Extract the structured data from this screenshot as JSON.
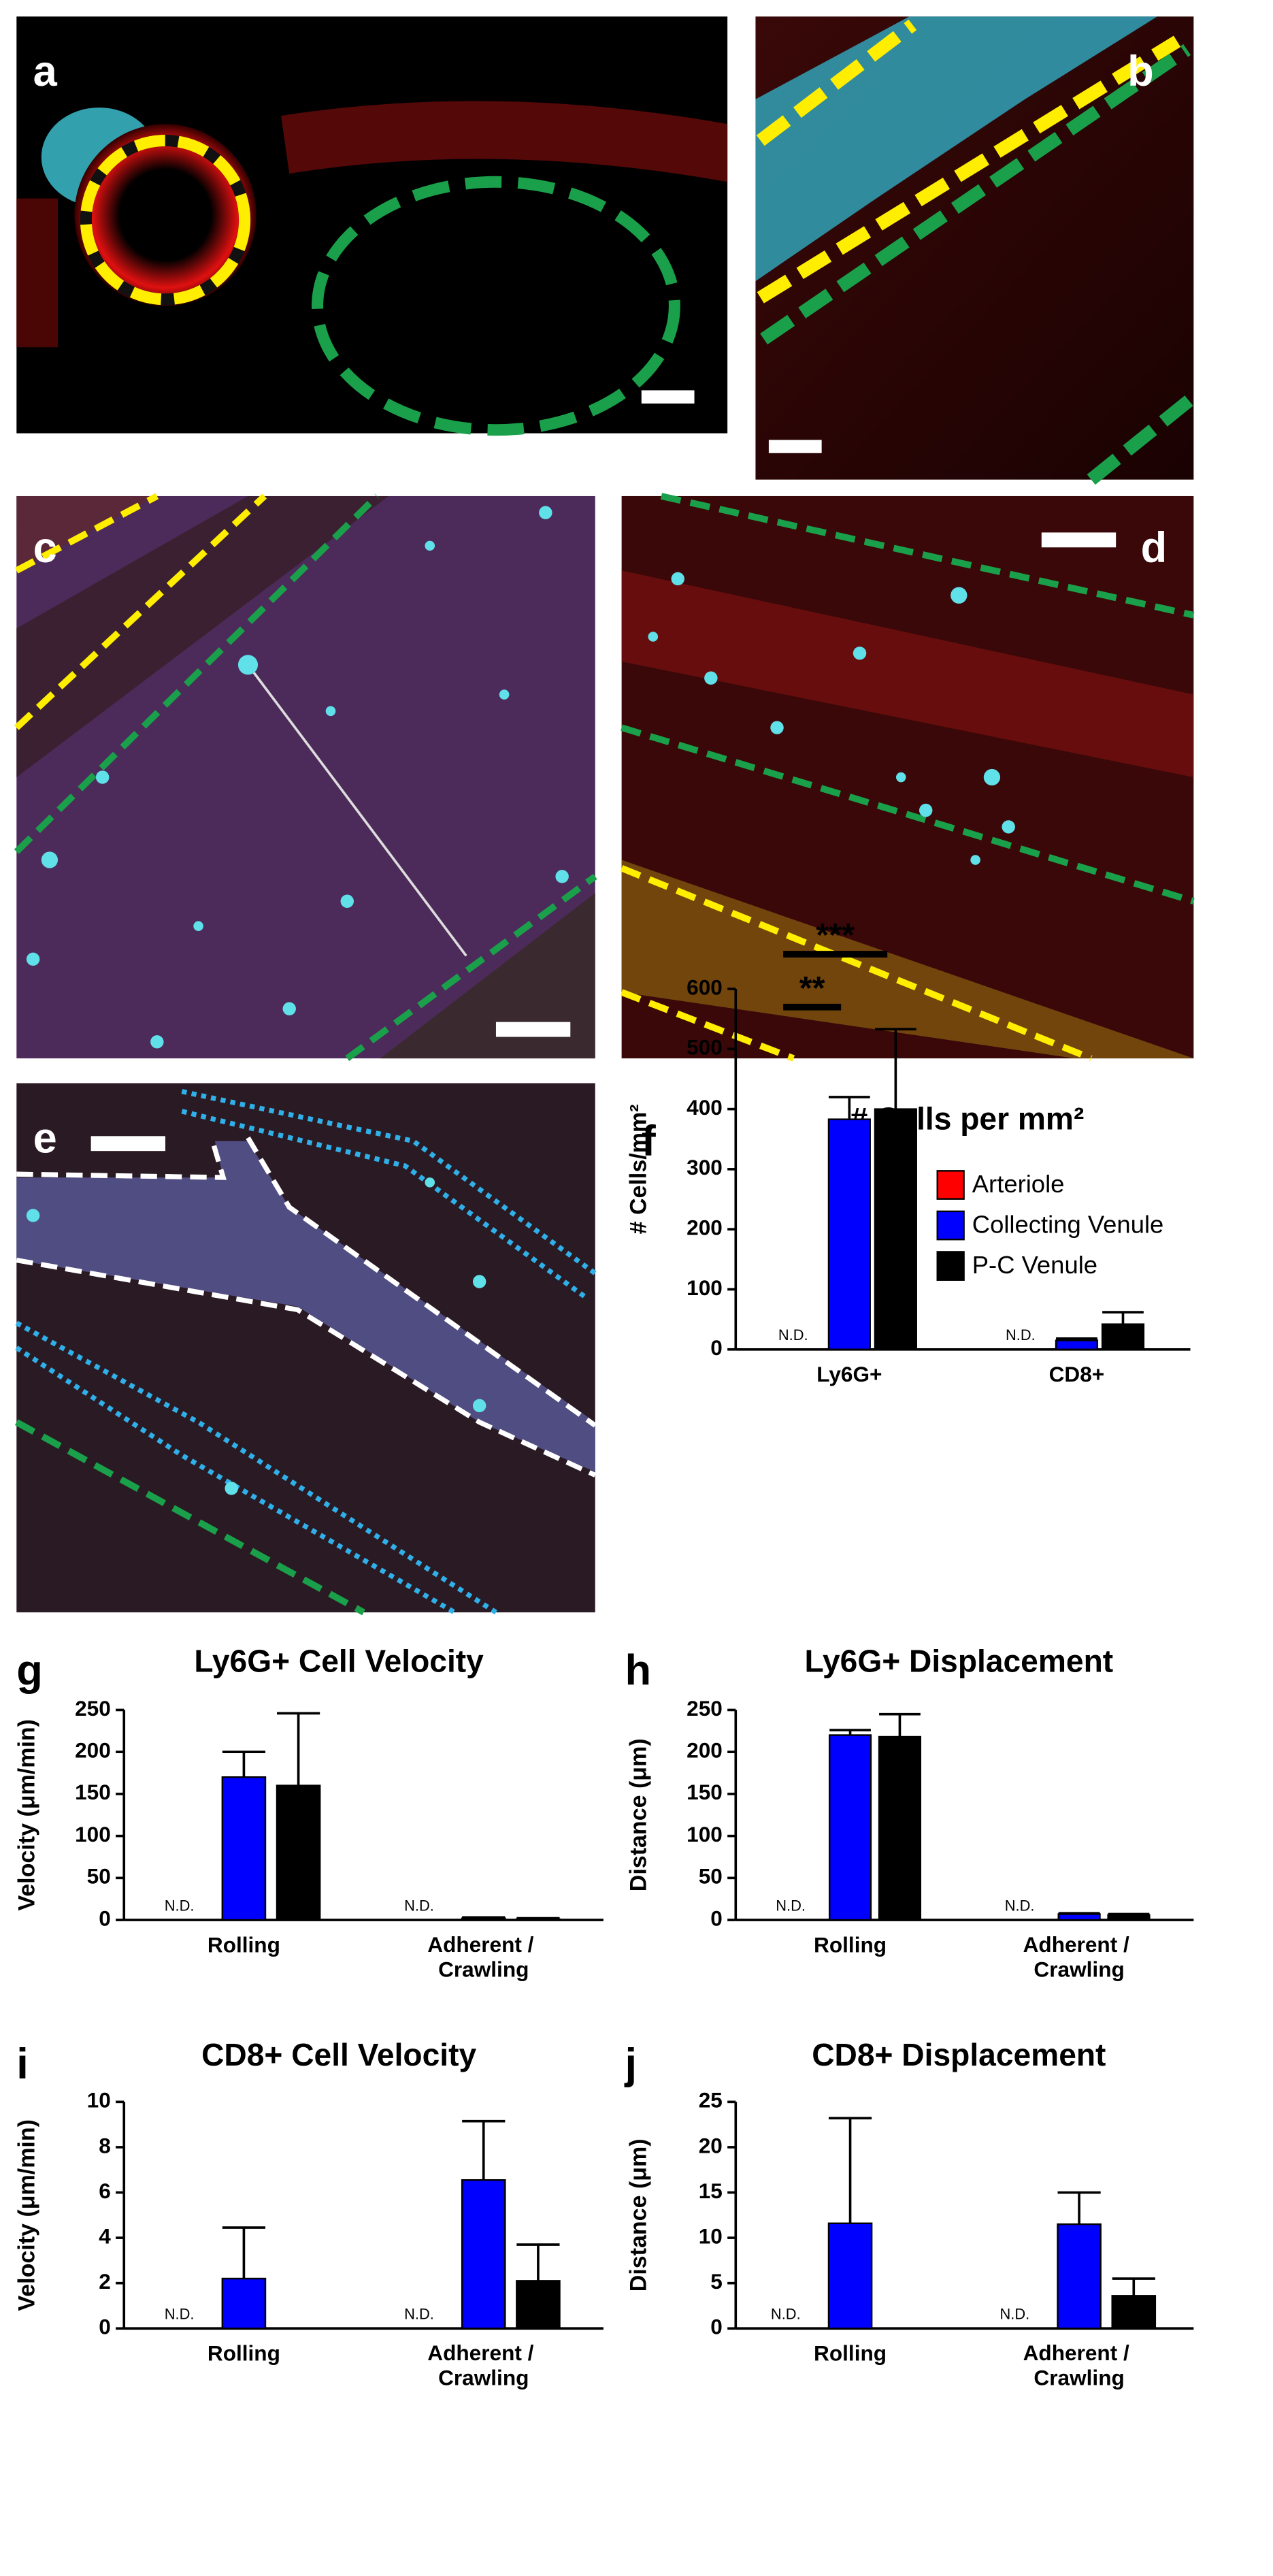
{
  "images": [
    {
      "label": "a"
    },
    {
      "label": "b"
    },
    {
      "label": "c"
    },
    {
      "label": "d"
    },
    {
      "label": "e"
    }
  ],
  "chart_data": [
    {
      "type": "bar",
      "label": "f",
      "title": "# Cells per mm²",
      "y_label": "# Cells/mm²",
      "categories": [
        "Ly6G+",
        "CD8+"
      ],
      "series": [
        {
          "name": "Arteriole",
          "color": "#ff0000",
          "values": [
            null,
            null
          ],
          "value_labels": [
            "N.D.",
            "N.D."
          ]
        },
        {
          "name": "Collecting Venule",
          "color": "#0000ff",
          "values": [
            383,
            15
          ],
          "errors": [
            37,
            3
          ]
        },
        {
          "name": "P-C Venule",
          "color": "#000000",
          "values": [
            400,
            42
          ],
          "errors": [
            133,
            20
          ]
        }
      ],
      "ylim": [
        0,
        600
      ],
      "yticks": [
        0,
        100,
        200,
        300,
        400,
        500,
        600
      ],
      "grid": false,
      "legend": "right",
      "annotations": [
        {
          "text": "**"
        },
        {
          "text": "***"
        }
      ]
    },
    {
      "type": "bar",
      "label": "g",
      "title": "Ly6G+ Cell Velocity",
      "y_label": "Velocity (μm/min)",
      "categories": [
        "Rolling",
        "Adherent /\nCrawling"
      ],
      "series": [
        {
          "color": "#ff0000",
          "values": [
            null,
            null
          ],
          "value_labels": [
            "N.D.",
            "N.D."
          ]
        },
        {
          "color": "#0000ff",
          "values": [
            170,
            2
          ],
          "errors": [
            30,
            1
          ]
        },
        {
          "color": "#000000",
          "values": [
            160,
            1
          ],
          "errors": [
            86,
            1
          ]
        }
      ],
      "ylim": [
        0,
        250
      ],
      "yticks": [
        0,
        50,
        100,
        150,
        200,
        250
      ],
      "grid": false
    },
    {
      "type": "bar",
      "label": "h",
      "title": "Ly6G+ Displacement",
      "y_label": "Distance (μm)",
      "categories": [
        "Rolling",
        "Adherent /\nCrawling"
      ],
      "series": [
        {
          "color": "#ff0000",
          "values": [
            null,
            null
          ],
          "value_labels": [
            "N.D.",
            "N.D."
          ]
        },
        {
          "color": "#0000ff",
          "values": [
            220,
            7
          ],
          "errors": [
            6,
            1
          ]
        },
        {
          "color": "#000000",
          "values": [
            218,
            6
          ],
          "errors": [
            27,
            1
          ]
        }
      ],
      "ylim": [
        0,
        250
      ],
      "yticks": [
        0,
        50,
        100,
        150,
        200,
        250
      ],
      "grid": false
    },
    {
      "type": "bar",
      "label": "i",
      "title": "CD8+ Cell Velocity",
      "y_label": "Velocity (μm/min)",
      "categories": [
        "Rolling",
        "Adherent /\nCrawling"
      ],
      "series": [
        {
          "color": "#ff0000",
          "values": [
            null,
            null
          ],
          "value_labels": [
            "N.D.",
            "N.D."
          ]
        },
        {
          "color": "#0000ff",
          "values": [
            2.2,
            6.55
          ],
          "errors": [
            2.25,
            2.6
          ]
        },
        {
          "color": "#000000",
          "values": [
            0,
            2.1
          ],
          "errors": [
            0,
            1.6
          ]
        }
      ],
      "ylim": [
        0,
        10
      ],
      "yticks": [
        0,
        2,
        4,
        6,
        8,
        10
      ],
      "grid": false
    },
    {
      "type": "bar",
      "label": "j",
      "title": "CD8+ Displacement",
      "y_label": "Distance (μm)",
      "categories": [
        "Rolling",
        "Adherent /\nCrawling"
      ],
      "series": [
        {
          "color": "#ff0000",
          "values": [
            null,
            null
          ],
          "value_labels": [
            "N.D.",
            "N.D."
          ]
        },
        {
          "color": "#0000ff",
          "values": [
            11.6,
            11.5
          ],
          "errors": [
            11.6,
            3.5
          ]
        },
        {
          "color": "#000000",
          "values": [
            0,
            3.6
          ],
          "errors": [
            0,
            1.9
          ]
        }
      ],
      "ylim": [
        0,
        25
      ],
      "yticks": [
        0,
        5,
        10,
        15,
        20,
        25
      ],
      "grid": false
    }
  ]
}
